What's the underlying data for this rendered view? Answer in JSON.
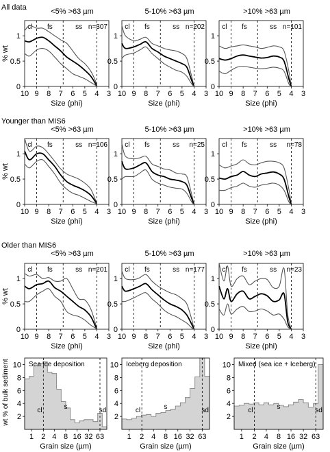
{
  "figure": {
    "ylabel_curves": "% wt",
    "xlabel_curves": "Size (phi)",
    "ylabel_hist": "wt % of bulk sediment",
    "xlabel_hist": "Grain size (µm)",
    "x_ticks_phi": [
      "10",
      "9",
      "8",
      "7",
      "6",
      "5",
      "4",
      "3"
    ],
    "y_ticks": [
      "0",
      "0.5",
      "1"
    ],
    "zone_labels": [
      "cl",
      "fs",
      "ss"
    ],
    "hist_x_ticks": [
      "1",
      "2",
      "4",
      "8",
      "16",
      "32",
      "63"
    ],
    "hist_y_ticks": [
      "2",
      "4",
      "6",
      "8",
      "10"
    ]
  },
  "chart_data": [
    {
      "type": "line",
      "row_title": "All data",
      "title": "<5% >63 µm",
      "n": "n=307",
      "xlim": [
        10,
        3
      ],
      "ylim": [
        0,
        1.3
      ],
      "series": [
        {
          "x": [
            10,
            9.6,
            9,
            8.5,
            8,
            7.5,
            7,
            6.5,
            6,
            5.5,
            5,
            4.5,
            4.1,
            4
          ],
          "values": [
            1.1,
            1.2,
            1.15,
            1.15,
            1.08,
            1.0,
            0.92,
            0.85,
            0.7,
            0.55,
            0.45,
            0.3,
            0.1,
            0.0
          ]
        },
        {
          "x": [
            10,
            9.6,
            9,
            8.5,
            8,
            7.5,
            7,
            6.5,
            6,
            5.5,
            5,
            4.5,
            4.1,
            4
          ],
          "values": [
            0.9,
            0.88,
            0.95,
            0.97,
            0.9,
            0.8,
            0.7,
            0.58,
            0.5,
            0.42,
            0.32,
            0.2,
            0.05,
            0.0
          ]
        },
        {
          "x": [
            10,
            9.6,
            9,
            8.5,
            8,
            7.5,
            7,
            6.5,
            6,
            5.5,
            5,
            4.5,
            4.1,
            4
          ],
          "values": [
            0.65,
            0.6,
            0.72,
            0.75,
            0.7,
            0.58,
            0.45,
            0.35,
            0.25,
            0.2,
            0.15,
            0.08,
            0.02,
            0.0
          ]
        }
      ]
    },
    {
      "type": "line",
      "title": "5-10% >63 µm",
      "n": "n=202",
      "xlim": [
        10,
        3
      ],
      "ylim": [
        0,
        1.3
      ],
      "series": [
        {
          "x": [
            10,
            9.7,
            9,
            8.5,
            8,
            7.5,
            7,
            6.5,
            6,
            5.5,
            5,
            4.6,
            4.2,
            4
          ],
          "values": [
            1.2,
            1.0,
            0.9,
            0.93,
            0.97,
            0.85,
            0.8,
            0.75,
            0.72,
            0.7,
            0.65,
            0.55,
            0.2,
            0.0
          ]
        },
        {
          "x": [
            10,
            9.7,
            9,
            8.5,
            8,
            7.5,
            7,
            6.5,
            6,
            5.5,
            5,
            4.6,
            4.2,
            4
          ],
          "values": [
            0.85,
            0.75,
            0.78,
            0.83,
            0.88,
            0.75,
            0.68,
            0.6,
            0.55,
            0.5,
            0.45,
            0.38,
            0.12,
            0.0
          ]
        },
        {
          "x": [
            10,
            9.7,
            9,
            8.5,
            8,
            7.5,
            7,
            6.5,
            6,
            5.5,
            5,
            4.6,
            4.2,
            4
          ],
          "values": [
            0.55,
            0.62,
            0.66,
            0.72,
            0.78,
            0.65,
            0.55,
            0.45,
            0.38,
            0.32,
            0.28,
            0.2,
            0.05,
            0.0
          ]
        }
      ]
    },
    {
      "type": "line",
      "title": ">10% >63 µm",
      "n": "n=101",
      "xlim": [
        10,
        3
      ],
      "ylim": [
        0,
        1.3
      ],
      "series": [
        {
          "x": [
            10,
            9.5,
            9,
            8.5,
            8,
            7.5,
            7,
            6.5,
            6,
            5.5,
            5,
            4.6,
            4.2,
            4
          ],
          "values": [
            0.8,
            0.75,
            0.78,
            0.8,
            0.82,
            0.8,
            0.78,
            0.75,
            0.77,
            0.8,
            0.78,
            0.7,
            0.3,
            0.0
          ]
        },
        {
          "x": [
            10,
            9.5,
            9,
            8.5,
            8,
            7.5,
            7,
            6.5,
            6,
            5.5,
            5,
            4.6,
            4.2,
            4
          ],
          "values": [
            0.55,
            0.52,
            0.55,
            0.6,
            0.62,
            0.6,
            0.58,
            0.56,
            0.57,
            0.6,
            0.58,
            0.5,
            0.15,
            0.0
          ]
        },
        {
          "x": [
            10,
            9.5,
            9,
            8.5,
            8,
            7.5,
            7,
            6.5,
            6,
            5.5,
            5,
            4.6,
            4.2,
            4
          ],
          "values": [
            0.3,
            0.25,
            0.32,
            0.38,
            0.4,
            0.38,
            0.36,
            0.35,
            0.36,
            0.38,
            0.36,
            0.3,
            0.05,
            0.0
          ]
        }
      ]
    },
    {
      "type": "line",
      "row_title": "Younger than MIS6",
      "title": "<5% >63 µm",
      "n": "n=106",
      "xlim": [
        10,
        3
      ],
      "ylim": [
        0,
        1.3
      ],
      "series": [
        {
          "x": [
            10,
            9.6,
            9,
            8.5,
            8,
            7.5,
            7,
            6.5,
            6,
            5.5,
            5,
            4.5,
            4.1,
            4
          ],
          "values": [
            1.3,
            1.05,
            1.15,
            1.12,
            1.0,
            0.85,
            0.7,
            0.6,
            0.55,
            0.5,
            0.42,
            0.3,
            0.08,
            0.0
          ]
        },
        {
          "x": [
            10,
            9.6,
            9,
            8.5,
            8,
            7.5,
            7,
            6.5,
            6,
            5.5,
            5,
            4.5,
            4.1,
            4
          ],
          "values": [
            1.05,
            0.88,
            1.0,
            1.0,
            0.88,
            0.75,
            0.58,
            0.45,
            0.38,
            0.33,
            0.27,
            0.18,
            0.05,
            0.0
          ]
        },
        {
          "x": [
            10,
            9.6,
            9,
            8.5,
            8,
            7.5,
            7,
            6.5,
            6,
            5.5,
            5,
            4.5,
            4.1,
            4
          ],
          "values": [
            0.8,
            0.72,
            0.85,
            0.88,
            0.75,
            0.6,
            0.42,
            0.3,
            0.22,
            0.18,
            0.12,
            0.06,
            0.02,
            0.0
          ]
        }
      ]
    },
    {
      "type": "line",
      "title": "5-10% >63 µm",
      "n": "n=25",
      "xlim": [
        10,
        3
      ],
      "ylim": [
        0,
        1.3
      ],
      "series": [
        {
          "x": [
            10,
            9.7,
            9,
            8.5,
            8,
            7.5,
            7,
            6.5,
            6,
            5.5,
            5,
            4.6,
            4.2,
            4
          ],
          "values": [
            1.2,
            0.95,
            0.9,
            0.92,
            0.95,
            0.8,
            0.75,
            0.7,
            0.68,
            0.62,
            0.6,
            0.55,
            0.2,
            0.0
          ]
        },
        {
          "x": [
            10,
            9.7,
            9,
            8.5,
            8,
            7.5,
            7,
            6.5,
            6,
            5.5,
            5,
            4.6,
            4.2,
            4
          ],
          "values": [
            0.85,
            0.7,
            0.72,
            0.78,
            0.82,
            0.65,
            0.58,
            0.55,
            0.5,
            0.48,
            0.45,
            0.38,
            0.12,
            0.0
          ]
        },
        {
          "x": [
            10,
            9.7,
            9,
            8.5,
            8,
            7.5,
            7,
            6.5,
            6,
            5.5,
            5,
            4.6,
            4.2,
            4
          ],
          "values": [
            0.5,
            0.55,
            0.55,
            0.62,
            0.68,
            0.5,
            0.42,
            0.38,
            0.34,
            0.32,
            0.3,
            0.22,
            0.05,
            0.0
          ]
        }
      ]
    },
    {
      "type": "line",
      "title": ">10% >63 µm",
      "n": "n=78",
      "xlim": [
        10,
        3
      ],
      "ylim": [
        0,
        1.3
      ],
      "series": [
        {
          "x": [
            10,
            9.5,
            9,
            8.5,
            8,
            7.5,
            7,
            6.5,
            6,
            5.5,
            5,
            4.6,
            4.2,
            4
          ],
          "values": [
            0.78,
            0.72,
            0.76,
            0.8,
            0.88,
            0.8,
            0.78,
            0.82,
            0.85,
            0.85,
            0.82,
            0.72,
            0.3,
            0.0
          ]
        },
        {
          "x": [
            10,
            9.5,
            9,
            8.5,
            8,
            7.5,
            7,
            6.5,
            6,
            5.5,
            5,
            4.6,
            4.2,
            4
          ],
          "values": [
            0.52,
            0.5,
            0.55,
            0.58,
            0.65,
            0.58,
            0.55,
            0.6,
            0.62,
            0.64,
            0.6,
            0.5,
            0.15,
            0.0
          ]
        },
        {
          "x": [
            10,
            9.5,
            9,
            8.5,
            8,
            7.5,
            7,
            6.5,
            6,
            5.5,
            5,
            4.6,
            4.2,
            4
          ],
          "values": [
            0.28,
            0.28,
            0.33,
            0.36,
            0.42,
            0.36,
            0.34,
            0.38,
            0.4,
            0.42,
            0.38,
            0.28,
            0.05,
            0.0
          ]
        }
      ]
    },
    {
      "type": "line",
      "row_title": "Older than MIS6",
      "title": "<5% >63 µm",
      "n": "n=201",
      "xlim": [
        10,
        3
      ],
      "ylim": [
        0,
        1.3
      ],
      "series": [
        {
          "x": [
            10,
            9.6,
            9,
            8.5,
            8,
            7.5,
            7,
            6.5,
            6,
            5.5,
            5,
            4.5,
            4.1,
            4
          ],
          "values": [
            1.1,
            1.05,
            1.08,
            1.0,
            1.02,
            0.95,
            0.95,
            1.0,
            0.8,
            0.6,
            0.58,
            0.4,
            0.1,
            0.0
          ]
        },
        {
          "x": [
            10,
            9.6,
            9,
            8.5,
            8,
            7.5,
            7,
            6.5,
            6,
            5.5,
            5,
            4.5,
            4.1,
            4
          ],
          "values": [
            0.85,
            0.8,
            0.88,
            0.9,
            0.95,
            0.82,
            0.75,
            0.65,
            0.55,
            0.45,
            0.38,
            0.25,
            0.05,
            0.0
          ]
        },
        {
          "x": [
            10,
            9.6,
            9,
            8.5,
            8,
            7.5,
            7,
            6.5,
            6,
            5.5,
            5,
            4.5,
            4.1,
            4
          ],
          "values": [
            0.55,
            0.55,
            0.68,
            0.75,
            0.8,
            0.65,
            0.55,
            0.35,
            0.28,
            0.25,
            0.18,
            0.08,
            0.02,
            0.0
          ]
        }
      ]
    },
    {
      "type": "line",
      "title": "5-10% >63 µm",
      "n": "n=177",
      "xlim": [
        10,
        3
      ],
      "ylim": [
        0,
        1.3
      ],
      "series": [
        {
          "x": [
            10,
            9.7,
            9,
            8.5,
            8,
            7.5,
            7,
            6.5,
            6,
            5.5,
            5,
            4.6,
            4.2,
            4
          ],
          "values": [
            1.15,
            1.0,
            0.98,
            1.02,
            1.08,
            0.95,
            0.85,
            0.78,
            0.72,
            0.68,
            0.6,
            0.5,
            0.2,
            0.0
          ]
        },
        {
          "x": [
            10,
            9.7,
            9,
            8.5,
            8,
            7.5,
            7,
            6.5,
            6,
            5.5,
            5,
            4.6,
            4.2,
            4
          ],
          "values": [
            0.85,
            0.75,
            0.8,
            0.85,
            0.9,
            0.78,
            0.68,
            0.58,
            0.5,
            0.45,
            0.38,
            0.28,
            0.1,
            0.0
          ]
        },
        {
          "x": [
            10,
            9.7,
            9,
            8.5,
            8,
            7.5,
            7,
            6.5,
            6,
            5.5,
            5,
            4.6,
            4.2,
            4
          ],
          "values": [
            0.55,
            0.55,
            0.62,
            0.68,
            0.72,
            0.6,
            0.5,
            0.38,
            0.3,
            0.25,
            0.18,
            0.12,
            0.03,
            0.0
          ]
        }
      ]
    },
    {
      "type": "line",
      "title": ">10% >63 µm",
      "n": "n=23",
      "xlim": [
        10,
        3
      ],
      "ylim": [
        0,
        1.3
      ],
      "series": [
        {
          "x": [
            10,
            9.6,
            9.3,
            9,
            8.5,
            8,
            7.5,
            7,
            6.5,
            6,
            5.5,
            5,
            4.6,
            4.3,
            4
          ],
          "values": [
            1.3,
            0.95,
            1.25,
            0.85,
            1.0,
            1.05,
            0.88,
            0.95,
            1.0,
            0.98,
            0.82,
            0.85,
            1.2,
            0.3,
            0.0
          ]
        },
        {
          "x": [
            10,
            9.6,
            9.3,
            9,
            8.5,
            8,
            7.5,
            7,
            6.5,
            6,
            5.5,
            5,
            4.6,
            4.3,
            4
          ],
          "values": [
            0.85,
            0.6,
            0.8,
            0.55,
            0.7,
            0.75,
            0.6,
            0.65,
            0.7,
            0.66,
            0.55,
            0.58,
            0.7,
            0.15,
            0.0
          ]
        },
        {
          "x": [
            10,
            9.6,
            9.3,
            9,
            8.5,
            8,
            7.5,
            7,
            6.5,
            6,
            5.5,
            5,
            4.6,
            4.3,
            4
          ],
          "values": [
            0.4,
            0.28,
            0.5,
            0.3,
            0.4,
            0.45,
            0.35,
            0.36,
            0.4,
            0.36,
            0.28,
            0.3,
            0.2,
            0.05,
            0.0
          ]
        }
      ]
    },
    {
      "type": "bar",
      "title": "Sea ice deposition",
      "ylim": [
        0,
        11
      ],
      "values": [
        7.8,
        8.2,
        9.8,
        10.2,
        10.4,
        8.8,
        8.6,
        6.2,
        4.3,
        3.3,
        1.5,
        1.0,
        1.3,
        1.5,
        1.5,
        1.2,
        2.5,
        0.4
      ],
      "annotations": [
        "cl",
        "s",
        "sd"
      ]
    },
    {
      "type": "bar",
      "title": "Iceberg deposition",
      "ylim": [
        0,
        11
      ],
      "values": [
        1.6,
        1.5,
        1.7,
        2.0,
        2.2,
        2.3,
        2.0,
        2.5,
        2.6,
        2.9,
        3.1,
        3.6,
        4.1,
        4.9,
        6.3,
        8.1,
        11.0,
        8.2
      ],
      "annotations": [
        "cl",
        "s",
        "sd"
      ]
    },
    {
      "type": "bar",
      "title": "Mixed (sea ice + Iceberg)",
      "ylim": [
        0,
        11
      ],
      "values": [
        3.6,
        3.7,
        4.0,
        3.9,
        4.1,
        3.8,
        4.1,
        3.8,
        4.0,
        3.7,
        3.5,
        3.8,
        4.2,
        4.6,
        4.1,
        3.4,
        4.0,
        10.0
      ],
      "annotations": [
        "cl",
        "s",
        "sd"
      ]
    }
  ]
}
